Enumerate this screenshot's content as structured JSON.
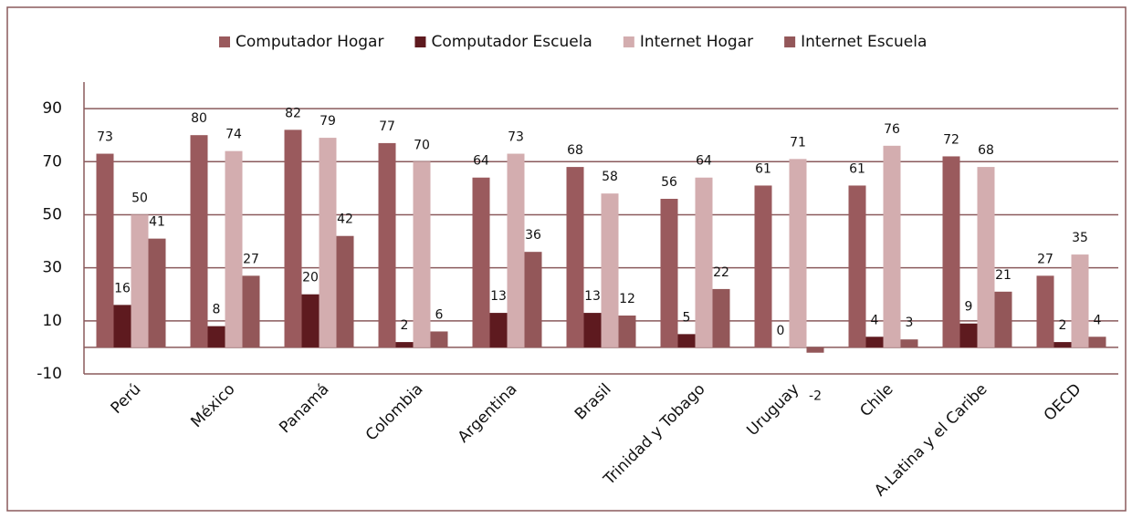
{
  "chart_data": {
    "type": "bar",
    "categories": [
      "Perú",
      "México",
      "Panamá",
      "Colombia",
      "Argentina",
      "Brasil",
      "Trinidad y Tobago",
      "Uruguay",
      "Chile",
      "A.Latina y el Caribe",
      "OECD"
    ],
    "series": [
      {
        "name": "Computador Hogar",
        "color": "#9a5a5d",
        "values": [
          73,
          80,
          82,
          77,
          64,
          68,
          56,
          61,
          61,
          72,
          27
        ]
      },
      {
        "name": "Computador Escuela",
        "color": "#5e1a1f",
        "values": [
          16,
          8,
          20,
          2,
          13,
          13,
          5,
          0,
          4,
          9,
          2
        ]
      },
      {
        "name": "Internet Hogar",
        "color": "#d3adaf",
        "values": [
          50,
          74,
          79,
          70,
          73,
          58,
          64,
          71,
          76,
          68,
          35
        ]
      },
      {
        "name": "Internet Escuela",
        "color": "#935759",
        "values": [
          41,
          27,
          42,
          6,
          36,
          12,
          22,
          -2,
          3,
          21,
          4
        ]
      }
    ],
    "ylim": [
      -10,
      100
    ],
    "yticks": [
      -10,
      10,
      30,
      50,
      70,
      90
    ],
    "grid": true,
    "legend": "top"
  }
}
